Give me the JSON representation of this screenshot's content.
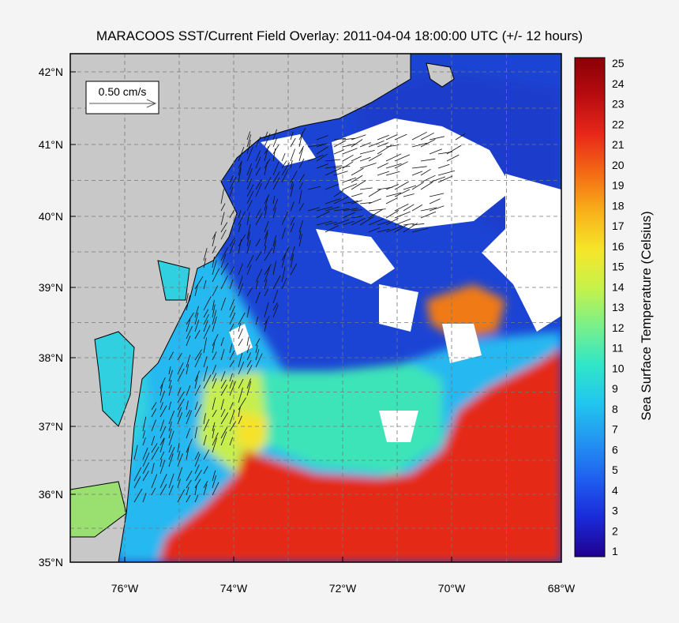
{
  "title": "MARACOOS SST/Current Field Overlay: 2011-04-04 18:00:00 UTC (+/- 12 hours)",
  "map": {
    "lat_labels": [
      "42°N",
      "41°N",
      "40°N",
      "39°N",
      "38°N",
      "37°N",
      "36°N",
      "35°N"
    ],
    "lon_labels": [
      "76°W",
      "74°W",
      "72°W",
      "70°W",
      "68°W"
    ],
    "scale_arrow_label": "0.50 cm/s",
    "land_color": "#c8c8c8",
    "cloud_color": "#ffffff"
  },
  "colorbar": {
    "label": "Sea Surface Temperature (Celsius)",
    "ticks": [
      "1",
      "2",
      "3",
      "4",
      "5",
      "6",
      "7",
      "8",
      "9",
      "10",
      "11",
      "12",
      "13",
      "14",
      "15",
      "16",
      "17",
      "18",
      "19",
      "20",
      "21",
      "22",
      "23",
      "24",
      "25"
    ],
    "min": 1,
    "max": 25,
    "colors": [
      "#200090",
      "#1a2ad8",
      "#1f5ef0",
      "#2294f2",
      "#22c6ee",
      "#30e6c8",
      "#78f08a",
      "#c6f24a",
      "#f6e62a",
      "#f8b01a",
      "#f46a14",
      "#e8281a",
      "#b80c10",
      "#8a0006"
    ]
  }
}
